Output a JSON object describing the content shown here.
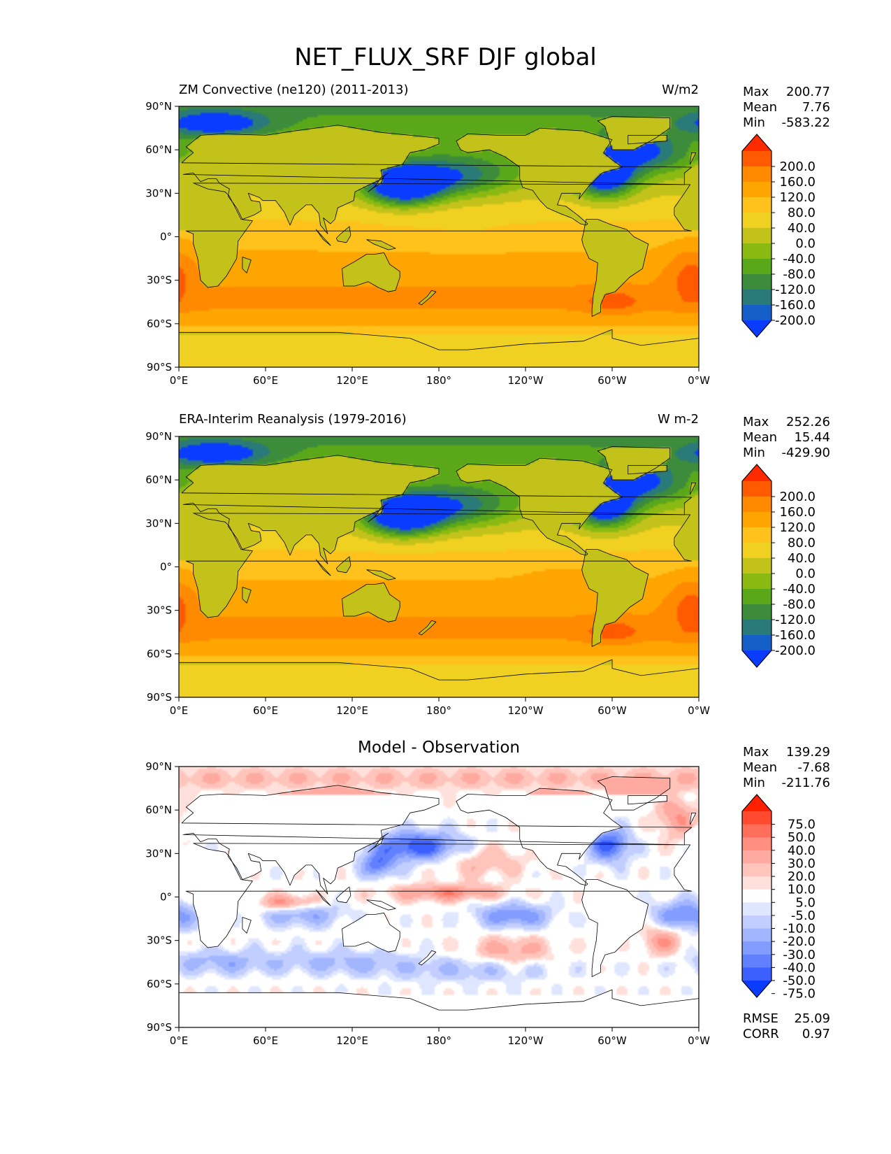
{
  "figure": {
    "title": "NET_FLUX_SRF DJF global"
  },
  "chart_data": [
    {
      "type": "heatmap",
      "title": "ZM Convective (ne120) (2011-2013)",
      "units": "W/m2",
      "stats": [
        {
          "label": "Max",
          "value": "200.77"
        },
        {
          "label": "Mean",
          "value": "7.76"
        },
        {
          "label": "Min",
          "value": "-583.22"
        }
      ],
      "x_ticks": [
        "0°E",
        "60°E",
        "120°E",
        "180°",
        "120°W",
        "60°W",
        "0°W"
      ],
      "y_ticks": [
        "90°N",
        "60°N",
        "30°N",
        "0°",
        "30°S",
        "60°S",
        "90°S"
      ],
      "xlim": [
        0,
        360
      ],
      "ylim": [
        -90,
        90
      ],
      "colorbar": {
        "levels": [
          "200.0",
          "160.0",
          "120.0",
          "80.0",
          "40.0",
          "0.0",
          "-40.0",
          "-80.0",
          "-120.0",
          "-160.0",
          "-200.0"
        ],
        "colors": [
          "#ff2a00",
          "#ff5a00",
          "#ff8a00",
          "#ffa500",
          "#ffc21c",
          "#f0d020",
          "#c2c21a",
          "#8aba12",
          "#5aa81a",
          "#3c8c3c",
          "#2a7a7a",
          "#1460c8",
          "#0a3cff"
        ],
        "extend": "both"
      }
    },
    {
      "type": "heatmap",
      "title": "ERA-Interim Reanalysis (1979-2016)",
      "units": "W m-2",
      "stats": [
        {
          "label": "Max",
          "value": "252.26"
        },
        {
          "label": "Mean",
          "value": "15.44"
        },
        {
          "label": "Min",
          "value": "-429.90"
        }
      ],
      "x_ticks": [
        "0°E",
        "60°E",
        "120°E",
        "180°",
        "120°W",
        "60°W",
        "0°W"
      ],
      "y_ticks": [
        "90°N",
        "60°N",
        "30°N",
        "0°",
        "30°S",
        "60°S",
        "90°S"
      ],
      "xlim": [
        0,
        360
      ],
      "ylim": [
        -90,
        90
      ],
      "colorbar": {
        "levels": [
          "200.0",
          "160.0",
          "120.0",
          "80.0",
          "40.0",
          "0.0",
          "-40.0",
          "-80.0",
          "-120.0",
          "-160.0",
          "-200.0"
        ],
        "colors": [
          "#ff2a00",
          "#ff5a00",
          "#ff8a00",
          "#ffa500",
          "#ffc21c",
          "#f0d020",
          "#c2c21a",
          "#8aba12",
          "#5aa81a",
          "#3c8c3c",
          "#2a7a7a",
          "#1460c8",
          "#0a3cff"
        ],
        "extend": "both"
      }
    },
    {
      "type": "heatmap",
      "title": "Model - Observation",
      "units": "",
      "stats": [
        {
          "label": "Max",
          "value": "139.29"
        },
        {
          "label": "Mean",
          "value": "-7.68"
        },
        {
          "label": "Min",
          "value": "-211.76"
        }
      ],
      "extra_stats": [
        {
          "label": "RMSE",
          "value": "25.09"
        },
        {
          "label": "CORR",
          "value": "0.97"
        }
      ],
      "x_ticks": [
        "0°E",
        "60°E",
        "120°E",
        "180°",
        "120°W",
        "60°W",
        "0°W"
      ],
      "y_ticks": [
        "90°N",
        "60°N",
        "30°N",
        "0°",
        "30°S",
        "60°S",
        "90°S"
      ],
      "xlim": [
        0,
        360
      ],
      "ylim": [
        -90,
        90
      ],
      "colorbar": {
        "levels": [
          "75.0",
          "50.0",
          "40.0",
          "30.0",
          "20.0",
          "10.0",
          "5.0",
          "-5.0",
          "-10.0",
          "-20.0",
          "-30.0",
          "-40.0",
          "-50.0",
          "-75.0"
        ],
        "colors": [
          "#ff2000",
          "#ff4a30",
          "#ff6e5a",
          "#ff8e80",
          "#ffaaa0",
          "#ffc4bc",
          "#ffe0da",
          "#ffffff",
          "#dfe6ff",
          "#c2ceff",
          "#a2b6ff",
          "#829cff",
          "#6080ff",
          "#3c60ff",
          "#0a3cff"
        ],
        "extend": "both"
      }
    }
  ]
}
